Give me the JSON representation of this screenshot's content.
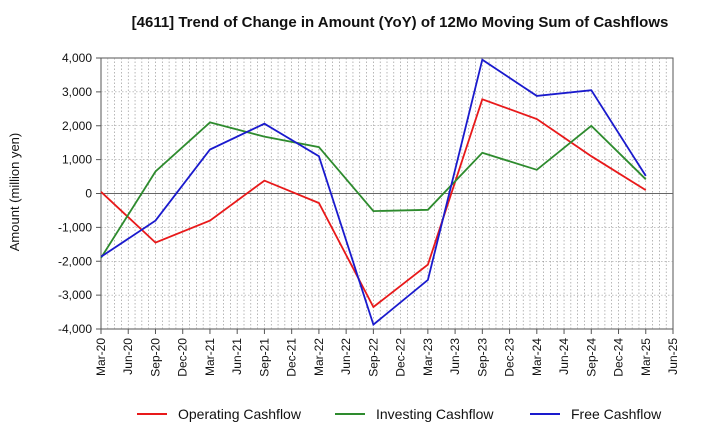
{
  "chart_data": {
    "type": "line",
    "title": "[4611]  Trend of Change in Amount (YoY) of 12Mo Moving Sum of Cashflows",
    "xlabel": "",
    "ylabel": "Amount (million yen)",
    "ylim": [
      -4000,
      4000
    ],
    "yticks": [
      -4000,
      -3000,
      -2000,
      -1000,
      0,
      1000,
      2000,
      3000,
      4000
    ],
    "ytick_labels": [
      "-4,000",
      "-3,000",
      "-2,000",
      "-1,000",
      "0",
      "1,000",
      "2,000",
      "3,000",
      "4,000"
    ],
    "categories": [
      "Mar-20",
      "Jun-20",
      "Sep-20",
      "Dec-20",
      "Mar-21",
      "Jun-21",
      "Sep-21",
      "Dec-21",
      "Mar-22",
      "Jun-22",
      "Sep-22",
      "Dec-22",
      "Mar-23",
      "Jun-23",
      "Sep-23",
      "Dec-23",
      "Mar-24",
      "Jun-24",
      "Sep-24",
      "Dec-24",
      "Mar-25",
      "Jun-25"
    ],
    "grid": true,
    "legend_position": "bottom",
    "series": [
      {
        "name": "Operating Cashflow",
        "color": "#e8191a",
        "values": [
          50,
          null,
          -1450,
          null,
          -800,
          null,
          380,
          null,
          -280,
          null,
          -3350,
          null,
          -2100,
          null,
          2780,
          null,
          2200,
          null,
          1100,
          null,
          100,
          null
        ]
      },
      {
        "name": "Investing Cashflow",
        "color": "#2e8b2e",
        "values": [
          -1900,
          null,
          650,
          null,
          2100,
          null,
          1680,
          null,
          1370,
          null,
          -520,
          null,
          -480,
          null,
          1200,
          null,
          700,
          null,
          2000,
          null,
          420,
          null
        ]
      },
      {
        "name": "Free Cashflow",
        "color": "#1a1acd",
        "values": [
          -1870,
          null,
          -800,
          null,
          1300,
          null,
          2060,
          null,
          1100,
          null,
          -3870,
          null,
          -2550,
          null,
          3950,
          null,
          2880,
          null,
          3050,
          null,
          520,
          null
        ]
      }
    ]
  }
}
